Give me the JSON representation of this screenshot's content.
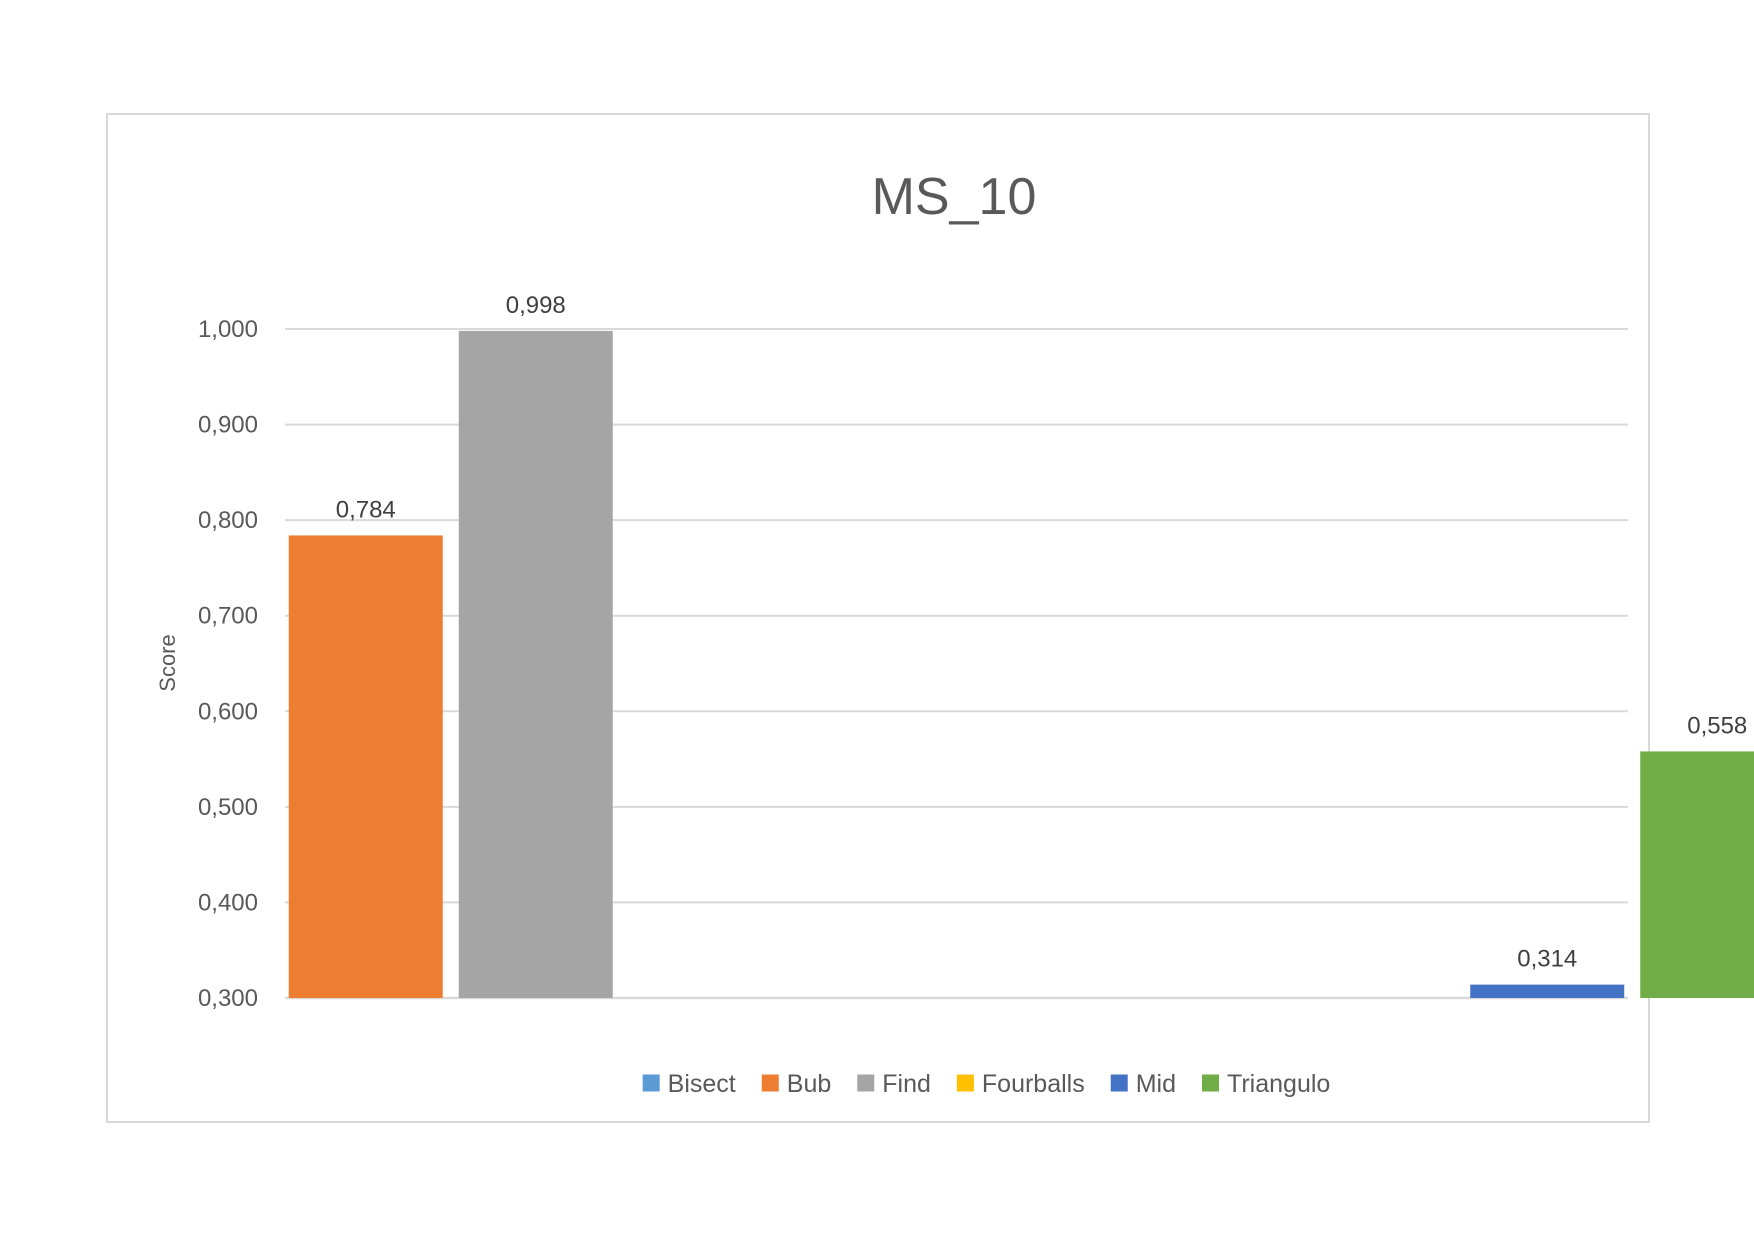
{
  "chart_data": {
    "type": "bar",
    "title": "MS_10",
    "xlabel": "",
    "ylabel": "Score",
    "ylim": [
      0.3,
      1.0
    ],
    "yticks": [
      0.3,
      0.4,
      0.5,
      0.6,
      0.7,
      0.8,
      0.9,
      1.0
    ],
    "ytick_labels": [
      "0,300",
      "0,400",
      "0,500",
      "0,600",
      "0,700",
      "0,800",
      "0,900",
      "1,000"
    ],
    "grid": true,
    "legend_position": "bottom",
    "categories": [
      "",
      ""
    ],
    "series": [
      {
        "name": "Bisect",
        "color": "#5B9BD5",
        "values": [
          null,
          null
        ],
        "labels": [
          "",
          ""
        ]
      },
      {
        "name": "Bub",
        "color": "#ED7D31",
        "values": [
          0.784,
          null
        ],
        "labels": [
          "0,784",
          ""
        ]
      },
      {
        "name": "Find",
        "color": "#A5A5A5",
        "values": [
          0.998,
          null
        ],
        "labels": [
          "0,998",
          ""
        ]
      },
      {
        "name": "Fourballs",
        "color": "#FFC000",
        "values": [
          null,
          null
        ],
        "labels": [
          "",
          ""
        ]
      },
      {
        "name": "Mid",
        "color": "#4472C4",
        "values": [
          null,
          0.314
        ],
        "labels": [
          "",
          "0,314"
        ]
      },
      {
        "name": "Triangulo",
        "color": "#70AD47",
        "values": [
          null,
          0.558
        ],
        "labels": [
          "",
          "0,558"
        ]
      }
    ]
  },
  "colors": {
    "text": "#595959",
    "grid": "#d9d9d9",
    "frame": "#d9d9d9"
  }
}
